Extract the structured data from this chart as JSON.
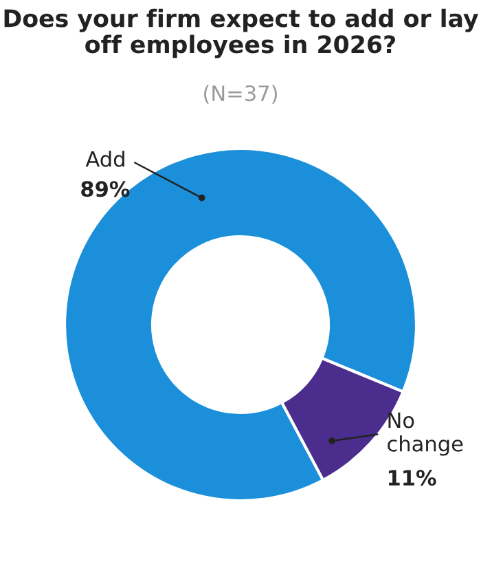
{
  "chart_data": {
    "type": "donut",
    "title": "Does your firm expect to add or lay off employees in 2026?",
    "subtitle": "(N=37)",
    "categories": [
      "Add",
      "No\nchange"
    ],
    "values": [
      89,
      11
    ],
    "colors": [
      "#1b8fda",
      "#4a2d8c"
    ],
    "value_labels": [
      "89%",
      "11%"
    ],
    "legend": false
  }
}
